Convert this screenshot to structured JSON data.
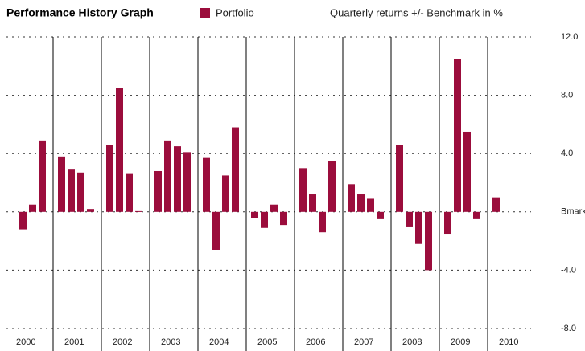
{
  "chart_data": {
    "type": "bar",
    "title": "Performance History Graph",
    "subtitle": "Quarterly returns +/- Benchmark in %",
    "categories": [
      "2000",
      null,
      null,
      null,
      "2001",
      null,
      null,
      null,
      "2002",
      null,
      null,
      null,
      "2003",
      null,
      null,
      null,
      "2004",
      null,
      null,
      null,
      "2005",
      null,
      null,
      null,
      "2006",
      null,
      null,
      null,
      "2007",
      null,
      null,
      null,
      "2008",
      null,
      null,
      null,
      "2009",
      null,
      null,
      null,
      "2010"
    ],
    "series": [
      {
        "name": "Portfolio",
        "color": "#9b0d3c",
        "values": [
          null,
          -1.2,
          0.5,
          4.9,
          3.8,
          2.9,
          2.7,
          0.2,
          4.6,
          8.5,
          2.6,
          0.05,
          2.8,
          4.9,
          4.5,
          4.1,
          3.7,
          -2.6,
          2.5,
          5.8,
          -0.4,
          -1.1,
          0.5,
          -0.9,
          3.0,
          1.2,
          -1.4,
          3.5,
          1.9,
          1.2,
          0.9,
          -0.5,
          4.6,
          -1.0,
          -2.2,
          -4.0,
          -1.5,
          10.5,
          5.5,
          -0.5,
          1.0
        ]
      }
    ],
    "ylim": [
      -8,
      12
    ],
    "yticks": [
      {
        "value": 12,
        "label": "12.0"
      },
      {
        "value": 8,
        "label": "8.0"
      },
      {
        "value": 4,
        "label": "4.0"
      },
      {
        "value": 0,
        "label": "Bmark"
      },
      {
        "value": -4,
        "label": "-4.0"
      },
      {
        "value": -8,
        "label": "-8.0"
      }
    ],
    "grid": true,
    "legend": "top"
  }
}
